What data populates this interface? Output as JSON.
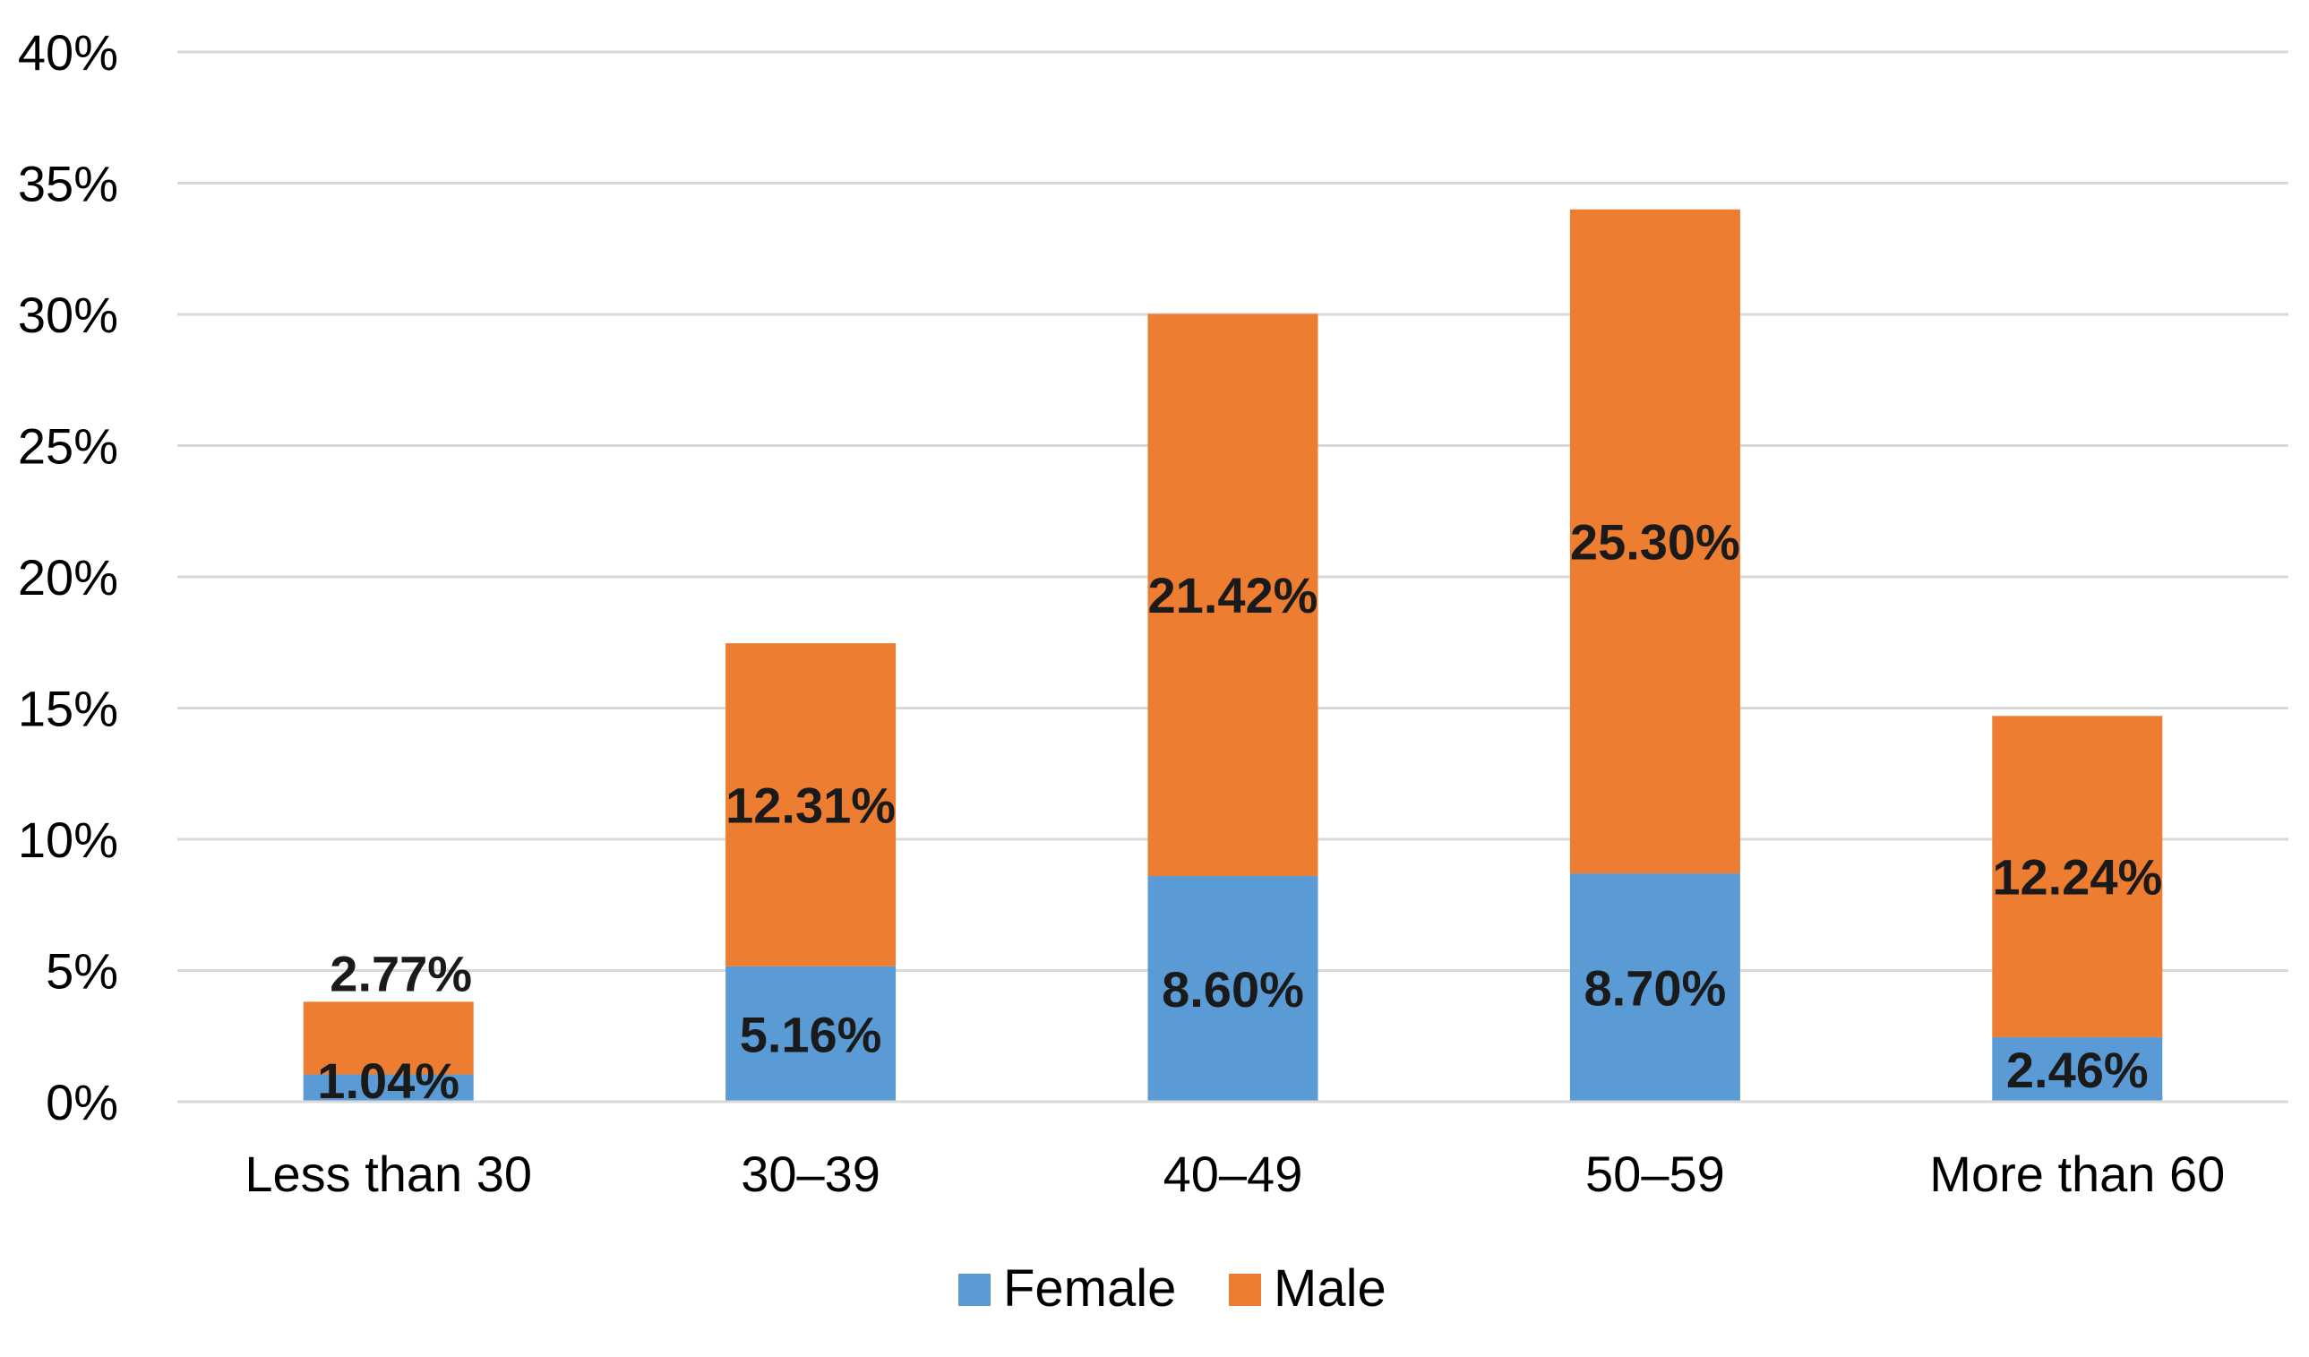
{
  "chart_data": {
    "type": "bar",
    "stacked": true,
    "title": "",
    "xlabel": "",
    "ylabel": "",
    "categories": [
      "Less than 30",
      "30–39",
      "40–49",
      "50–59",
      "More than 60"
    ],
    "series": [
      {
        "name": "Female",
        "color": "#5b9bd5",
        "values": [
          1.04,
          5.16,
          8.6,
          8.7,
          2.46
        ],
        "labels": [
          "1.04%",
          "5.16%",
          "8.60%",
          "8.70%",
          "2.46%"
        ]
      },
      {
        "name": "Male",
        "color": "#ed7d31",
        "values": [
          2.77,
          12.31,
          21.42,
          25.3,
          12.24
        ],
        "labels": [
          "2.77%",
          "12.31%",
          "21.42%",
          "25.30%",
          "12.24%"
        ]
      }
    ],
    "ylim": [
      0,
      40
    ],
    "yticks": [
      0,
      5,
      10,
      15,
      20,
      25,
      30,
      35,
      40
    ],
    "ytick_labels": [
      "0%",
      "5%",
      "10%",
      "15%",
      "20%",
      "25%",
      "30%",
      "35%",
      "40%"
    ],
    "grid": true,
    "legend_position": "bottom-center"
  }
}
